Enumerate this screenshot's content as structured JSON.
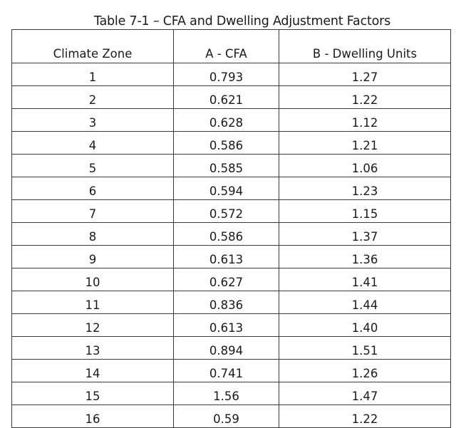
{
  "table": {
    "caption": "Table 7-1 – CFA and Dwelling Adjustment Factors",
    "headers": [
      "Climate Zone",
      "A - CFA",
      "B - Dwelling Units"
    ],
    "rows": [
      [
        "1",
        "0.793",
        "1.27"
      ],
      [
        "2",
        "0.621",
        "1.22"
      ],
      [
        "3",
        "0.628",
        "1.12"
      ],
      [
        "4",
        "0.586",
        "1.21"
      ],
      [
        "5",
        "0.585",
        "1.06"
      ],
      [
        "6",
        "0.594",
        "1.23"
      ],
      [
        "7",
        "0.572",
        "1.15"
      ],
      [
        "8",
        "0.586",
        "1.37"
      ],
      [
        "9",
        "0.613",
        "1.36"
      ],
      [
        "10",
        "0.627",
        "1.41"
      ],
      [
        "11",
        "0.836",
        "1.44"
      ],
      [
        "12",
        "0.613",
        "1.40"
      ],
      [
        "13",
        "0.894",
        "1.51"
      ],
      [
        "14",
        "0.741",
        "1.26"
      ],
      [
        "15",
        "1.56",
        "1.47"
      ],
      [
        "16",
        "0.59",
        "1.22"
      ]
    ]
  }
}
